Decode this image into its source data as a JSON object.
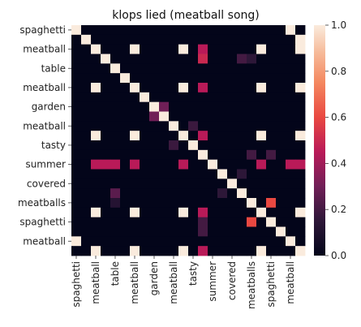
{
  "chart_data": {
    "type": "heatmap",
    "title": "klops lied (meatball song)",
    "xlabel": "",
    "ylabel": "",
    "size": 24,
    "row_tick_labels": [
      "spaghetti",
      "meatball",
      "table",
      "meatball",
      "garden",
      "meatball",
      "tasty",
      "summer",
      "covered",
      "meatballs",
      "spaghetti",
      "meatball"
    ],
    "col_tick_labels": [
      "spaghetti",
      "meatball",
      "table",
      "meatball",
      "garden",
      "meatball",
      "tasty",
      "summer",
      "covered",
      "meatballs",
      "spaghetti",
      "meatball"
    ],
    "colorbar": {
      "min": 0,
      "max": 1,
      "ticks": [
        "0.0",
        "0.2",
        "0.4",
        "0.6",
        "0.8",
        "1.0"
      ],
      "colormap": "rocket"
    },
    "grid": false,
    "values": [
      [
        1,
        0,
        0,
        0,
        0,
        0,
        0,
        0,
        0,
        0,
        0,
        0,
        0,
        0,
        0,
        0,
        0,
        0,
        0,
        0,
        0,
        0,
        1,
        0
      ],
      [
        0,
        1,
        0,
        0,
        0,
        0,
        0,
        0,
        0,
        0,
        0,
        0,
        0,
        0,
        0,
        0,
        0,
        0,
        0,
        0,
        0,
        0,
        0,
        1
      ],
      [
        0,
        0,
        1,
        0,
        0,
        0,
        1,
        0,
        0,
        0,
        0,
        1,
        0,
        0.45,
        0,
        0,
        0,
        0,
        0,
        1,
        0,
        0,
        0,
        1
      ],
      [
        0,
        0,
        0,
        1,
        0,
        0,
        0,
        0,
        0,
        0,
        0,
        0,
        0,
        0.5,
        0,
        0,
        0,
        0.2,
        0.15,
        0,
        0,
        0,
        0,
        0
      ],
      [
        0,
        0,
        0,
        0,
        1,
        0,
        0,
        0,
        0,
        0,
        0,
        0,
        0,
        0,
        0,
        0,
        0,
        0,
        0,
        0,
        0,
        0,
        0,
        0
      ],
      [
        0,
        0,
        0,
        0,
        0,
        1,
        0,
        0,
        0,
        0,
        0,
        0,
        0,
        0,
        0,
        0,
        0,
        0,
        0,
        0,
        0,
        0,
        0,
        0
      ],
      [
        0,
        0,
        1,
        0,
        0,
        0,
        1,
        0,
        0,
        0,
        0,
        1,
        0,
        0.45,
        0,
        0,
        0,
        0,
        0,
        1,
        0,
        0,
        0,
        1
      ],
      [
        0,
        0,
        0,
        0,
        0,
        0,
        0,
        1,
        0,
        0,
        0,
        0,
        0,
        0,
        0,
        0,
        0,
        0,
        0,
        0,
        0,
        0,
        0,
        0
      ],
      [
        0,
        0,
        0,
        0,
        0,
        0,
        0,
        0,
        1,
        0.3,
        0,
        0,
        0,
        0,
        0,
        0,
        0,
        0,
        0,
        0,
        0,
        0,
        0,
        0
      ],
      [
        0,
        0,
        0,
        0,
        0,
        0,
        0,
        0,
        0.3,
        1,
        0,
        0,
        0,
        0,
        0,
        0,
        0,
        0,
        0,
        0,
        0,
        0,
        0,
        0
      ],
      [
        0,
        0,
        0,
        0,
        0,
        0,
        0,
        0,
        0,
        0,
        1,
        0,
        0.18,
        0,
        0,
        0,
        0,
        0,
        0,
        0,
        0,
        0,
        0,
        0
      ],
      [
        0,
        0,
        1,
        0,
        0,
        0,
        1,
        0,
        0,
        0,
        0,
        1,
        0,
        0.45,
        0,
        0,
        0,
        0,
        0,
        1,
        0,
        0,
        0,
        1
      ],
      [
        0,
        0,
        0,
        0,
        0,
        0,
        0,
        0,
        0,
        0,
        0.18,
        0,
        1,
        0,
        0,
        0,
        0,
        0,
        0,
        0,
        0,
        0,
        0,
        0
      ],
      [
        0,
        0,
        0,
        0,
        0,
        0,
        0,
        0,
        0,
        0,
        0,
        0,
        0,
        1,
        0,
        0,
        0,
        0,
        0.2,
        0,
        0.2,
        0,
        0,
        0
      ],
      [
        0,
        0,
        0.45,
        0.45,
        0.45,
        0,
        0.45,
        0,
        0,
        0,
        0,
        0.45,
        0,
        0,
        1,
        0,
        0,
        0,
        0,
        0.45,
        0,
        0,
        0.45,
        0.45
      ],
      [
        0,
        0,
        0,
        0,
        0,
        0,
        0,
        0,
        0,
        0,
        0,
        0,
        0,
        0,
        0,
        1,
        0,
        0.15,
        0,
        0,
        0,
        0,
        0,
        0
      ],
      [
        0,
        0,
        0,
        0,
        0,
        0,
        0,
        0,
        0,
        0,
        0,
        0,
        0,
        0,
        0,
        0,
        1,
        0,
        0,
        0,
        0,
        0,
        0,
        0
      ],
      [
        0,
        0,
        0,
        0,
        0.25,
        0,
        0,
        0,
        0,
        0,
        0,
        0,
        0,
        0,
        0,
        0.15,
        0,
        1,
        0,
        0,
        0,
        0,
        0,
        0
      ],
      [
        0,
        0,
        0,
        0,
        0.12,
        0,
        0,
        0,
        0,
        0,
        0,
        0,
        0,
        0,
        0,
        0,
        0,
        0,
        1,
        0,
        0.6,
        0,
        0,
        0
      ],
      [
        0,
        0,
        1,
        0,
        0,
        0,
        1,
        0,
        0,
        0,
        0,
        1,
        0,
        0.45,
        0,
        0,
        0,
        0,
        0,
        1,
        0,
        0,
        0,
        1
      ],
      [
        0,
        0,
        0,
        0,
        0,
        0,
        0,
        0,
        0,
        0,
        0,
        0,
        0,
        0.2,
        0,
        0,
        0,
        0,
        0.6,
        0,
        1,
        0,
        0,
        0
      ],
      [
        0,
        0,
        0,
        0,
        0,
        0,
        0,
        0,
        0,
        0,
        0,
        0,
        0,
        0.2,
        0,
        0,
        0,
        0,
        0,
        0,
        0,
        1,
        0,
        0
      ],
      [
        1,
        0,
        0,
        0,
        0,
        0,
        0,
        0,
        0,
        0,
        0,
        0,
        0,
        0,
        0,
        0,
        0,
        0,
        0,
        0,
        0,
        0,
        1,
        0
      ],
      [
        0,
        0,
        1,
        0,
        0,
        0,
        1,
        0,
        0,
        0,
        0,
        1,
        0,
        0.45,
        0,
        0,
        0,
        0,
        0,
        1,
        0,
        0,
        0,
        1
      ]
    ]
  }
}
